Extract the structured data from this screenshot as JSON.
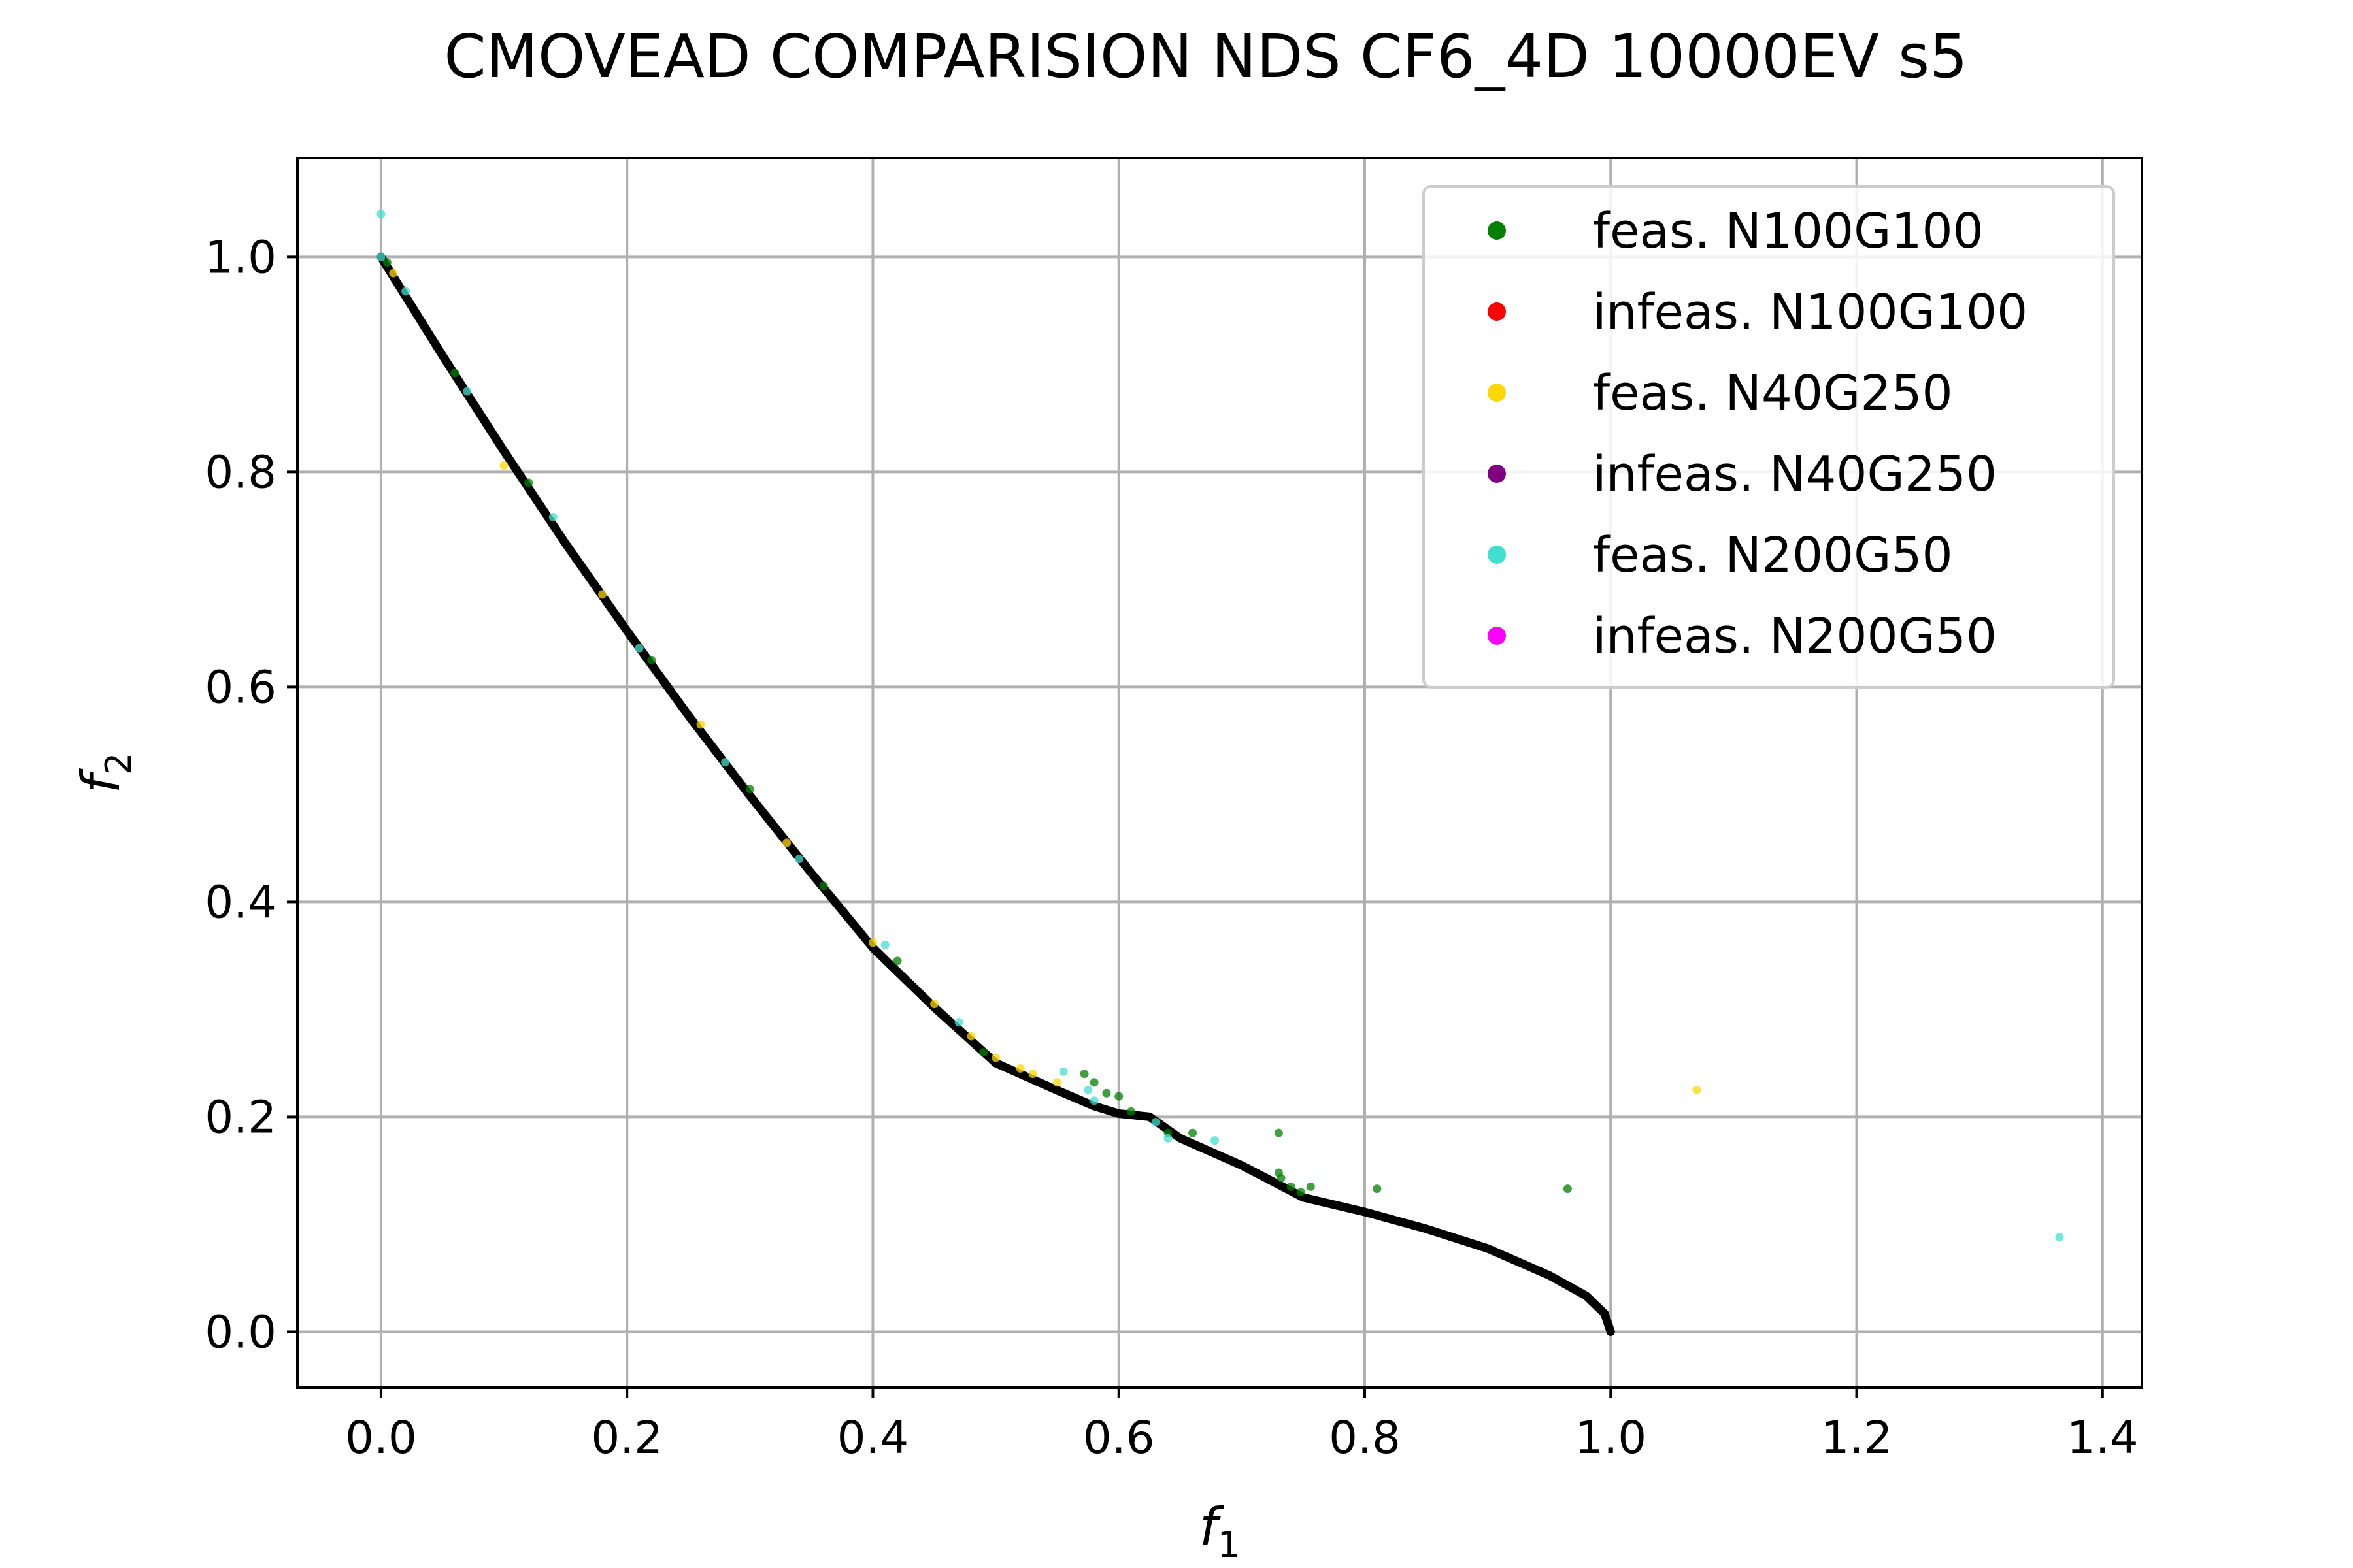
{
  "chart_data": {
    "type": "scatter",
    "title": "CMOVEAD COMPARISION NDS CF6_4D 10000EV s5",
    "xlabel": "f",
    "xlabel_sub": "1",
    "ylabel": "f",
    "ylabel_sub": "2",
    "xlim": [
      -0.068,
      1.432
    ],
    "ylim": [
      -0.052,
      1.092
    ],
    "xticks": [
      0.0,
      0.2,
      0.4,
      0.6,
      0.8,
      1.0,
      1.2,
      1.4
    ],
    "xtick_labels": [
      "0.0",
      "0.2",
      "0.4",
      "0.6",
      "0.8",
      "1.0",
      "1.2",
      "1.4"
    ],
    "yticks": [
      0.0,
      0.2,
      0.4,
      0.6,
      0.8,
      1.0
    ],
    "ytick_labels": [
      "0.0",
      "0.2",
      "0.4",
      "0.6",
      "0.8",
      "1.0"
    ],
    "grid": true,
    "legend_position": "top-right",
    "reference_front": {
      "color": "#000000",
      "points": [
        [
          0.0,
          1.0
        ],
        [
          0.05,
          0.9083
        ],
        [
          0.1,
          0.8193
        ],
        [
          0.15,
          0.7335
        ],
        [
          0.2,
          0.6522
        ],
        [
          0.25,
          0.5734
        ],
        [
          0.3,
          0.4987
        ],
        [
          0.35,
          0.4267
        ],
        [
          0.4,
          0.3572
        ],
        [
          0.45,
          0.3018
        ],
        [
          0.5,
          0.25
        ],
        [
          0.55,
          0.2246
        ],
        [
          0.58,
          0.21
        ],
        [
          0.6,
          0.203
        ],
        [
          0.625,
          0.2
        ],
        [
          0.65,
          0.18
        ],
        [
          0.7,
          0.1548
        ],
        [
          0.75,
          0.125
        ],
        [
          0.8,
          0.1115
        ],
        [
          0.85,
          0.0958
        ],
        [
          0.9,
          0.0775
        ],
        [
          0.95,
          0.0525
        ],
        [
          0.98,
          0.0335
        ],
        [
          0.995,
          0.017
        ],
        [
          1.0,
          0.0
        ]
      ]
    },
    "series": [
      {
        "name": "feas. N100G100",
        "color": "#008000",
        "points": [
          [
            0.005,
            0.995
          ],
          [
            0.06,
            0.892
          ],
          [
            0.12,
            0.79
          ],
          [
            0.22,
            0.625
          ],
          [
            0.3,
            0.505
          ],
          [
            0.36,
            0.415
          ],
          [
            0.42,
            0.345
          ],
          [
            0.49,
            0.26
          ],
          [
            0.572,
            0.24
          ],
          [
            0.58,
            0.232
          ],
          [
            0.59,
            0.222
          ],
          [
            0.6,
            0.219
          ],
          [
            0.61,
            0.205
          ],
          [
            0.64,
            0.185
          ],
          [
            0.66,
            0.185
          ],
          [
            0.73,
            0.185
          ],
          [
            0.73,
            0.148
          ],
          [
            0.732,
            0.143
          ],
          [
            0.74,
            0.135
          ],
          [
            0.748,
            0.13
          ],
          [
            0.756,
            0.135
          ],
          [
            0.81,
            0.133
          ],
          [
            0.965,
            0.133
          ]
        ]
      },
      {
        "name": "infeas. N100G100",
        "color": "#ff0000",
        "points": []
      },
      {
        "name": "feas. N40G250",
        "color": "#ffd700",
        "points": [
          [
            0.01,
            0.985
          ],
          [
            0.1,
            0.806
          ],
          [
            0.18,
            0.686
          ],
          [
            0.26,
            0.565
          ],
          [
            0.33,
            0.455
          ],
          [
            0.4,
            0.362
          ],
          [
            0.45,
            0.305
          ],
          [
            0.48,
            0.275
          ],
          [
            0.5,
            0.255
          ],
          [
            0.52,
            0.245
          ],
          [
            0.53,
            0.24
          ],
          [
            0.55,
            0.232
          ],
          [
            1.07,
            0.225
          ]
        ]
      },
      {
        "name": "infeas. N40G250",
        "color": "#800080",
        "points": []
      },
      {
        "name": "feas. N200G50",
        "color": "#40e0d0",
        "points": [
          [
            0.0,
            1.04
          ],
          [
            0.0,
            1.0
          ],
          [
            0.02,
            0.968
          ],
          [
            0.07,
            0.875
          ],
          [
            0.14,
            0.758
          ],
          [
            0.21,
            0.636
          ],
          [
            0.28,
            0.53
          ],
          [
            0.34,
            0.44
          ],
          [
            0.41,
            0.36
          ],
          [
            0.47,
            0.288
          ],
          [
            0.555,
            0.242
          ],
          [
            0.575,
            0.225
          ],
          [
            0.58,
            0.215
          ],
          [
            0.63,
            0.195
          ],
          [
            0.64,
            0.18
          ],
          [
            0.678,
            0.178
          ],
          [
            1.365,
            0.088
          ]
        ]
      },
      {
        "name": "infeas. N200G50",
        "color": "#ff00ff",
        "points": []
      }
    ]
  }
}
